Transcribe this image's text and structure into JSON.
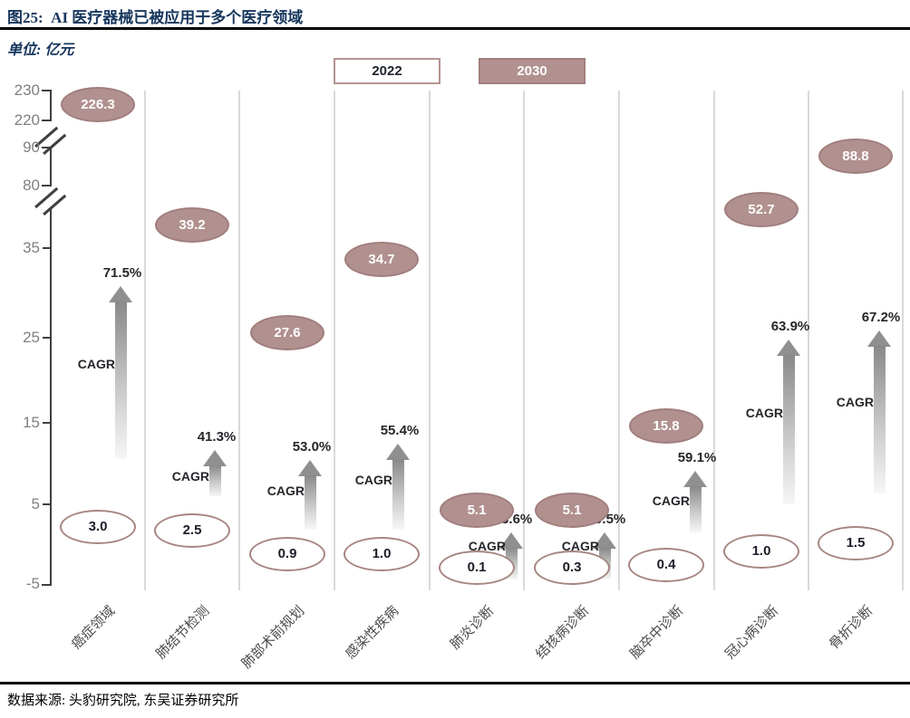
{
  "figure": {
    "title": "图25:  AI 医疗器械已被应用于多个医疗领域",
    "unit_label": "单位: 亿元",
    "source": "数据来源: 头豹研究院, 东吴证券研究所"
  },
  "legend": {
    "item_2022": "2022",
    "item_2030": "2030"
  },
  "cagr_word": "CAGR",
  "y_axis": {
    "tick_labels_top_to_bottom": [
      "230",
      "220",
      "90",
      "80",
      "35",
      "25",
      "15",
      "5",
      "-5"
    ]
  },
  "colors": {
    "title_navy": "#17365d",
    "bubble_fill_2030": "#b19190",
    "bubble_border": "#a17e7d",
    "bubble_2022_border": "#a78581",
    "arrow_gray": "#8f8f8f",
    "grid_gray": "#d9d9d9",
    "axis_gray": "#404040",
    "tick_label_gray": "#7f7f7f",
    "dark_text": "#26262b"
  },
  "chart_data": {
    "type": "scatter",
    "title": "图25: AI 医疗器械已被应用于多个医疗领域",
    "unit": "亿元",
    "categories": [
      "癌症领域",
      "肺结节检测",
      "肺部术前规划",
      "感染性疾病",
      "肺炎诊断",
      "结核病诊断",
      "脑卒中诊断",
      "冠心病诊断",
      "骨折诊断"
    ],
    "series": [
      {
        "name": "2022",
        "values": [
          3.0,
          2.5,
          0.9,
          1.0,
          0.1,
          0.3,
          0.4,
          1.0,
          1.5
        ]
      },
      {
        "name": "2030",
        "values": [
          226.3,
          39.2,
          27.6,
          34.7,
          5.1,
          5.1,
          15.8,
          52.7,
          88.8
        ]
      }
    ],
    "value_labels_2022": [
      "3.0",
      "2.5",
      "0.9",
      "1.0",
      "0.1",
      "0.3",
      "0.4",
      "1.0",
      "1.5"
    ],
    "value_labels_2030": [
      "226.3",
      "39.2",
      "27.6",
      "34.7",
      "5.1",
      "5.1",
      "15.8",
      "52.7",
      "88.8"
    ],
    "cagr_percent": [
      "71.5%",
      "41.3%",
      "53.0%",
      "55.4%",
      "63.6%",
      "40.5%",
      "59.1%",
      "63.9%",
      "67.2%"
    ],
    "y_ticks": [
      -5,
      5,
      15,
      25,
      35,
      80,
      90,
      220,
      230
    ],
    "axis_breaks": [
      [
        35,
        80
      ],
      [
        90,
        220
      ]
    ],
    "ylabel": "亿元",
    "legend_position": "top",
    "grid": "vertical-only",
    "marker_style": "labeled-ellipse",
    "annotation_style": "gradient-arrow-with-cagr"
  }
}
